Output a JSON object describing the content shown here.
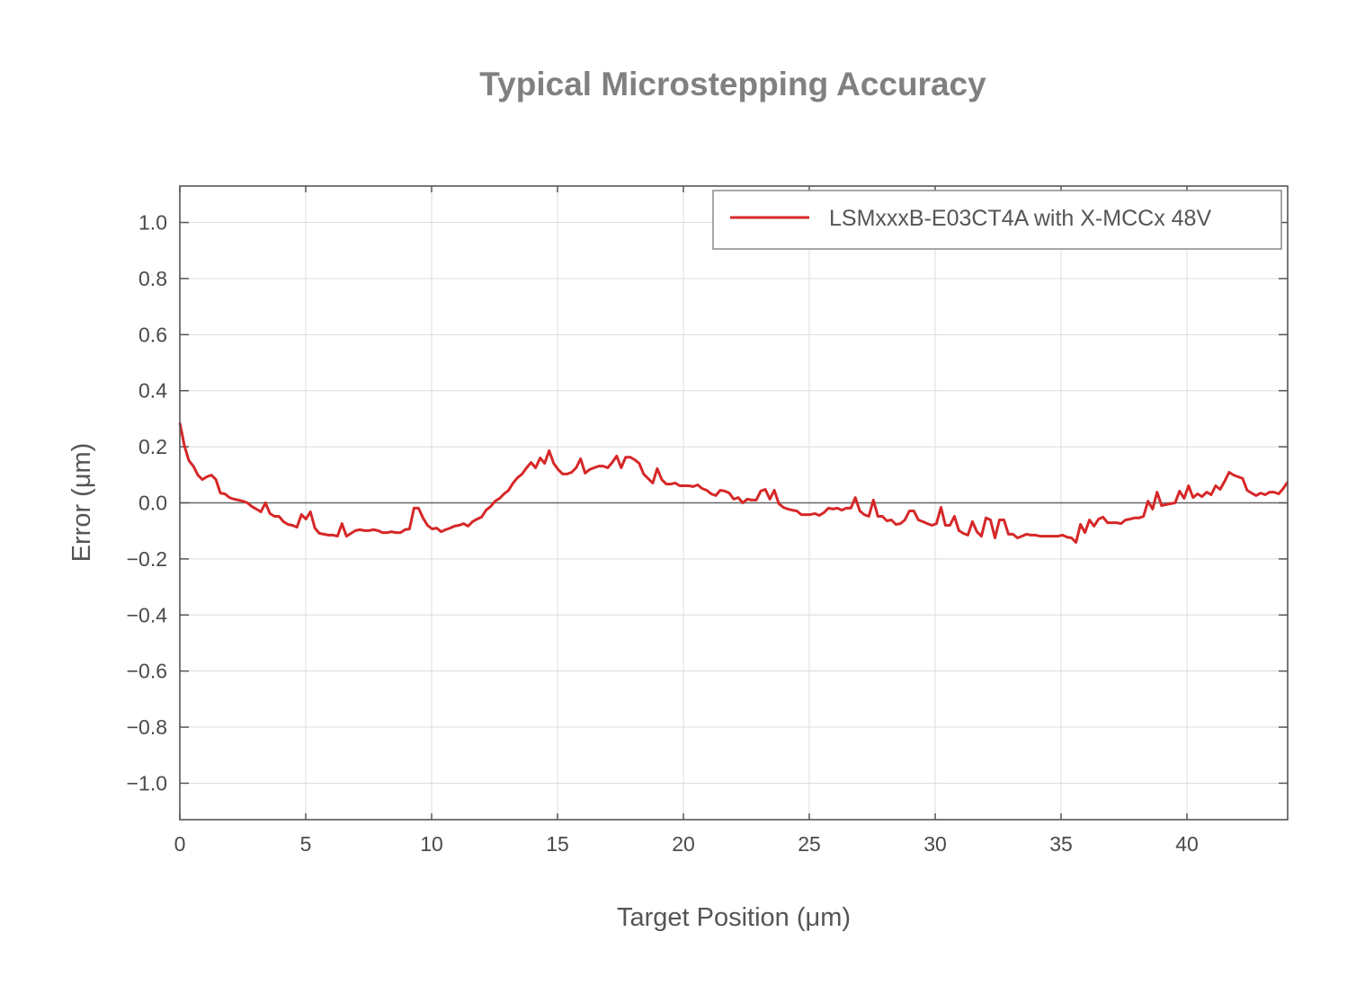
{
  "chart_data": {
    "type": "line",
    "title": "Typical Microstepping Accuracy",
    "xlabel": "Target Position (μm)",
    "ylabel": "Error (μm)",
    "xlim": [
      0,
      44
    ],
    "ylim": [
      -1.13,
      1.13
    ],
    "xticks": [
      0,
      5,
      10,
      15,
      20,
      25,
      30,
      35,
      40
    ],
    "xtick_labels": [
      "0",
      "5",
      "10",
      "15",
      "20",
      "25",
      "30",
      "35",
      "40"
    ],
    "yticks": [
      1.0,
      0.8,
      0.6,
      0.4,
      0.2,
      0.0,
      -0.2,
      -0.4,
      -0.6,
      -0.8,
      -1.0
    ],
    "ytick_labels": [
      "1.0",
      "0.8",
      "0.6",
      "0.4",
      "0.2",
      "0.0",
      "−0.2",
      "−0.4",
      "−0.6",
      "−0.8",
      "−1.0"
    ],
    "grid": true,
    "legend_position": "top-right",
    "series": [
      {
        "name": "LSMxxxB-E03CT4A with X-MCCx 48V",
        "color": "#d62728",
        "x_spacing": "uniform",
        "y": [
          0.285,
          0.205,
          0.151,
          0.131,
          0.099,
          0.083,
          0.093,
          0.099,
          0.083,
          0.035,
          0.032,
          0.019,
          0.013,
          0.01,
          0.006,
          0.0,
          -0.013,
          -0.022,
          -0.032,
          0.0,
          -0.038,
          -0.048,
          -0.048,
          -0.067,
          -0.077,
          -0.08,
          -0.087,
          -0.042,
          -0.058,
          -0.032,
          -0.09,
          -0.109,
          -0.112,
          -0.115,
          -0.115,
          -0.119,
          -0.074,
          -0.119,
          -0.109,
          -0.099,
          -0.096,
          -0.099,
          -0.099,
          -0.096,
          -0.099,
          -0.106,
          -0.106,
          -0.103,
          -0.106,
          -0.106,
          -0.096,
          -0.093,
          -0.019,
          -0.019,
          -0.054,
          -0.08,
          -0.093,
          -0.09,
          -0.103,
          -0.096,
          -0.09,
          -0.083,
          -0.08,
          -0.074,
          -0.083,
          -0.067,
          -0.058,
          -0.051,
          -0.026,
          -0.013,
          0.006,
          0.016,
          0.032,
          0.045,
          0.071,
          0.09,
          0.103,
          0.125,
          0.144,
          0.125,
          0.16,
          0.141,
          0.186,
          0.141,
          0.119,
          0.103,
          0.103,
          0.109,
          0.125,
          0.157,
          0.106,
          0.119,
          0.125,
          0.131,
          0.131,
          0.125,
          0.144,
          0.167,
          0.125,
          0.163,
          0.163,
          0.154,
          0.141,
          0.103,
          0.087,
          0.071,
          0.122,
          0.083,
          0.067,
          0.067,
          0.071,
          0.061,
          0.061,
          0.061,
          0.058,
          0.064,
          0.051,
          0.045,
          0.032,
          0.026,
          0.045,
          0.042,
          0.035,
          0.013,
          0.019,
          0.0,
          0.013,
          0.01,
          0.01,
          0.042,
          0.048,
          0.013,
          0.045,
          -0.003,
          -0.016,
          -0.022,
          -0.026,
          -0.029,
          -0.042,
          -0.042,
          -0.042,
          -0.038,
          -0.045,
          -0.035,
          -0.019,
          -0.022,
          -0.019,
          -0.026,
          -0.019,
          -0.019,
          0.019,
          -0.029,
          -0.042,
          -0.048,
          0.01,
          -0.048,
          -0.048,
          -0.064,
          -0.061,
          -0.077,
          -0.074,
          -0.061,
          -0.029,
          -0.029,
          -0.061,
          -0.067,
          -0.074,
          -0.08,
          -0.074,
          -0.016,
          -0.08,
          -0.08,
          -0.048,
          -0.099,
          -0.109,
          -0.115,
          -0.067,
          -0.103,
          -0.119,
          -0.054,
          -0.061,
          -0.125,
          -0.061,
          -0.061,
          -0.112,
          -0.112,
          -0.125,
          -0.119,
          -0.112,
          -0.115,
          -0.115,
          -0.119,
          -0.119,
          -0.119,
          -0.119,
          -0.119,
          -0.115,
          -0.122,
          -0.125,
          -0.141,
          -0.077,
          -0.106,
          -0.061,
          -0.083,
          -0.058,
          -0.051,
          -0.071,
          -0.071,
          -0.071,
          -0.074,
          -0.061,
          -0.058,
          -0.054,
          -0.054,
          -0.048,
          0.006,
          -0.022,
          0.038,
          -0.01,
          -0.006,
          -0.003,
          0.0,
          0.042,
          0.016,
          0.061,
          0.019,
          0.032,
          0.022,
          0.038,
          0.029,
          0.061,
          0.048,
          0.077,
          0.109,
          0.099,
          0.093,
          0.087,
          0.045,
          0.035,
          0.026,
          0.035,
          0.029,
          0.038,
          0.038,
          0.032,
          0.051,
          0.074
        ]
      }
    ]
  }
}
